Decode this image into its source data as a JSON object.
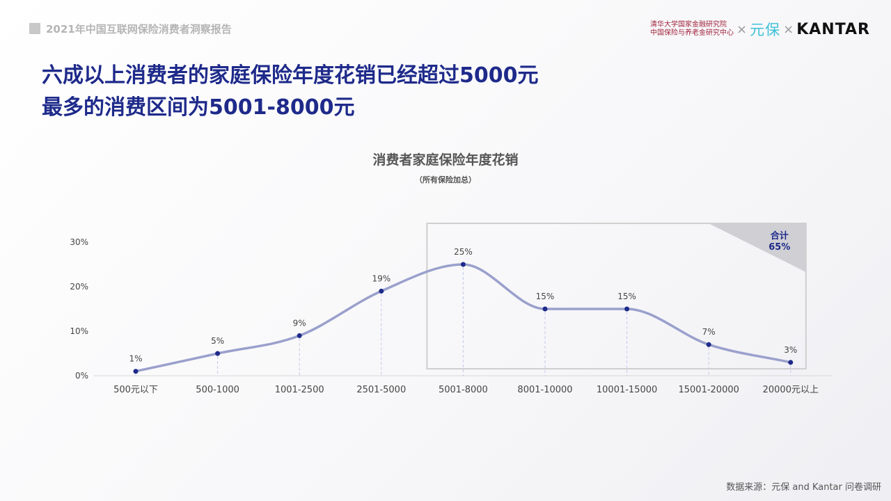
{
  "header": {
    "report_title": "2021年中国互联网保险消费者洞察报告",
    "institute_line1": "清华大学国家金融研究院",
    "institute_line2": "中国保险与养老金研究中心",
    "separator": "×",
    "brand_yuanbao": "元保",
    "brand_kantar": "KANTAR"
  },
  "headline": {
    "line1": "六成以上消费者的家庭保险年度花销已经超过5000元",
    "line2": "最多的消费区间为5001-8000元"
  },
  "chart_data": {
    "type": "line",
    "title": "消费者家庭保险年度花销",
    "subtitle": "（所有保险加总）",
    "categories": [
      "500元以下",
      "500-1000",
      "1001-2500",
      "2501-5000",
      "5001-8000",
      "8001-10000",
      "10001-15000",
      "15001-20000",
      "20000元以上"
    ],
    "values": [
      1,
      5,
      9,
      19,
      25,
      15,
      15,
      7,
      3
    ],
    "value_labels": [
      "1%",
      "5%",
      "9%",
      "19%",
      "25%",
      "15%",
      "15%",
      "7%",
      "3%"
    ],
    "ylim": [
      0,
      30
    ],
    "yticks": [
      0,
      10,
      20,
      30
    ],
    "ytick_labels": [
      "0%",
      "10%",
      "20%",
      "30%"
    ],
    "line_color": "#9aa0cc",
    "point_color": "#1e2a8a",
    "grid": false,
    "highlight": {
      "from_category": "5001-8000",
      "to_category": "20000元以上",
      "label": "合计",
      "value": "65%"
    }
  },
  "footer": {
    "source": "数据来源：元保 and Kantar 问卷调研"
  }
}
